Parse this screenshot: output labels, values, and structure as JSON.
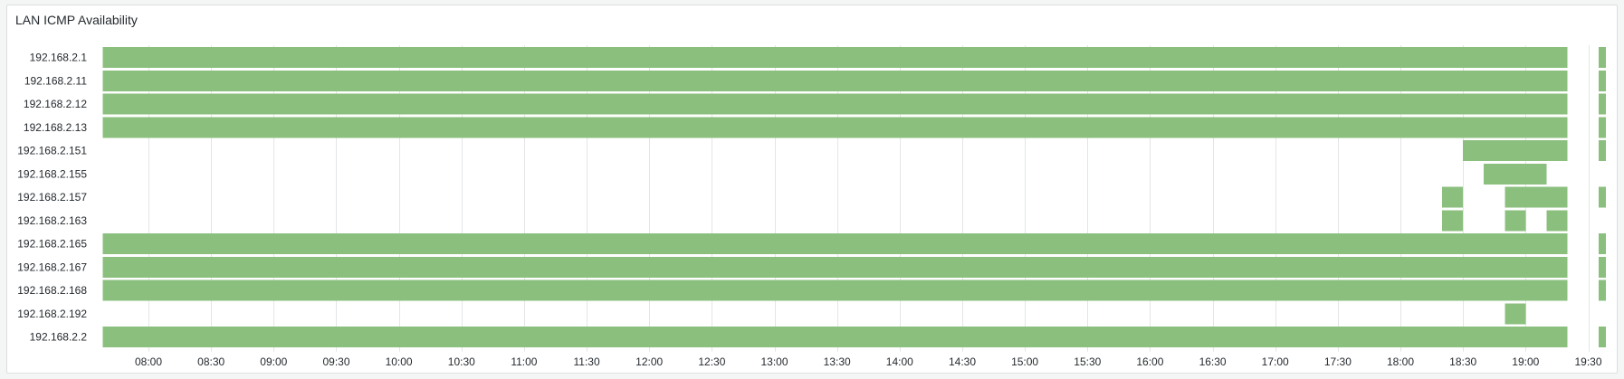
{
  "panel": {
    "title": "LAN ICMP Availability"
  },
  "colors": {
    "up": "#8bbf7e",
    "grid": "#e4e5e7",
    "text": "#24292e"
  },
  "chart_data": {
    "type": "state-timeline",
    "title": "LAN ICMP Availability",
    "x_ticks": [
      "08:00",
      "08:30",
      "09:00",
      "09:30",
      "10:00",
      "10:30",
      "11:00",
      "11:30",
      "12:00",
      "12:30",
      "13:00",
      "13:30",
      "14:00",
      "14:30",
      "15:00",
      "15:30",
      "16:00",
      "16:30",
      "17:00",
      "17:30",
      "18:00",
      "18:30",
      "19:00",
      "19:30"
    ],
    "x_range": [
      "07:38",
      "19:40"
    ],
    "grid": true,
    "rows": [
      {
        "name": "192.168.2.1",
        "up": [
          [
            "07:38",
            "19:20"
          ],
          [
            "19:35",
            "19:40"
          ]
        ]
      },
      {
        "name": "192.168.2.11",
        "up": [
          [
            "07:38",
            "19:20"
          ],
          [
            "19:35",
            "19:40"
          ]
        ]
      },
      {
        "name": "192.168.2.12",
        "up": [
          [
            "07:38",
            "19:20"
          ],
          [
            "19:35",
            "19:40"
          ]
        ]
      },
      {
        "name": "192.168.2.13",
        "up": [
          [
            "07:38",
            "19:20"
          ],
          [
            "19:35",
            "19:40"
          ]
        ]
      },
      {
        "name": "192.168.2.151",
        "up": [
          [
            "18:30",
            "19:20"
          ],
          [
            "19:35",
            "19:40"
          ]
        ]
      },
      {
        "name": "192.168.2.155",
        "up": [
          [
            "18:40",
            "19:10"
          ]
        ]
      },
      {
        "name": "192.168.2.157",
        "up": [
          [
            "18:20",
            "18:30"
          ],
          [
            "18:50",
            "19:20"
          ],
          [
            "19:35",
            "19:40"
          ]
        ]
      },
      {
        "name": "192.168.2.163",
        "up": [
          [
            "18:20",
            "18:30"
          ],
          [
            "18:50",
            "19:00"
          ],
          [
            "19:10",
            "19:20"
          ]
        ]
      },
      {
        "name": "192.168.2.165",
        "up": [
          [
            "07:38",
            "19:20"
          ],
          [
            "19:35",
            "19:40"
          ]
        ]
      },
      {
        "name": "192.168.2.167",
        "up": [
          [
            "07:38",
            "19:20"
          ],
          [
            "19:35",
            "19:40"
          ]
        ]
      },
      {
        "name": "192.168.2.168",
        "up": [
          [
            "07:38",
            "19:20"
          ],
          [
            "19:35",
            "19:40"
          ]
        ]
      },
      {
        "name": "192.168.2.192",
        "up": [
          [
            "18:50",
            "19:00"
          ]
        ]
      },
      {
        "name": "192.168.2.2",
        "up": [
          [
            "07:38",
            "19:20"
          ],
          [
            "19:35",
            "19:40"
          ]
        ]
      }
    ]
  }
}
